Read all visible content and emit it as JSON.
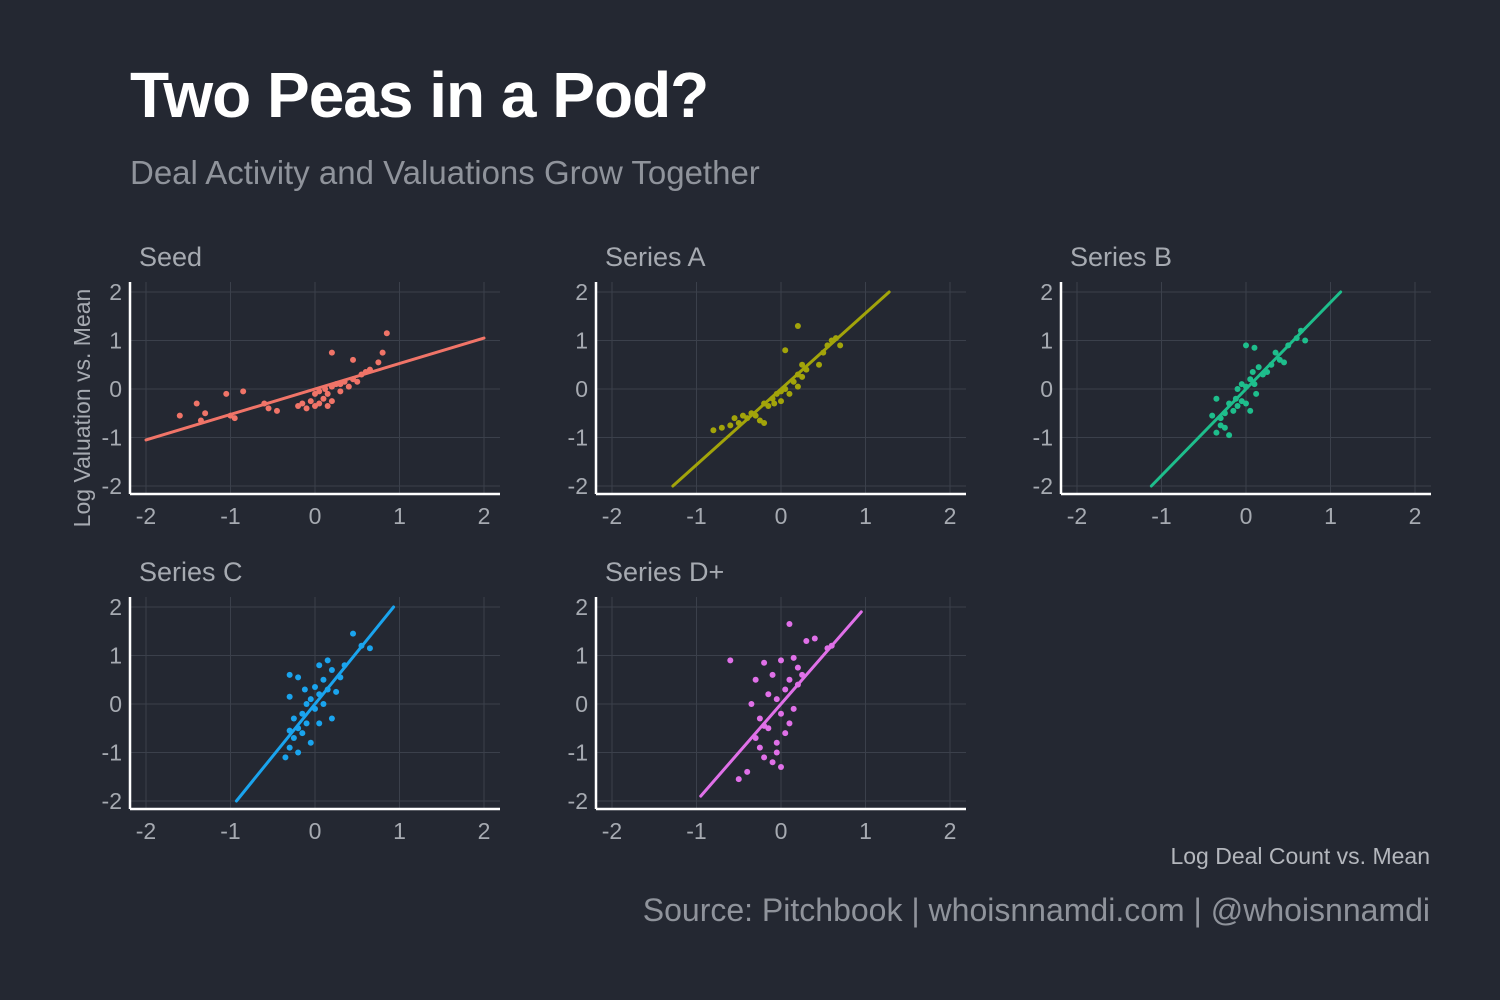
{
  "header": {
    "title": "Two Peas in a Pod?",
    "subtitle": "Deal Activity and Valuations Grow Together"
  },
  "axes": {
    "x_label": "Log Deal Count vs. Mean",
    "y_label": "Log Valuation vs. Mean"
  },
  "caption": "Source: Pitchbook | whoisnnamdi.com | @whoisnnamdi",
  "colors": {
    "background": "#242832",
    "grid": "#3b404b",
    "axis": "#ffffff",
    "tick_text": "#a6aab1",
    "panel_title": "#a6aab1"
  },
  "chart_data": [
    {
      "type": "scatter",
      "title": "Seed",
      "color": "#f07468",
      "xlim": [
        -2,
        2
      ],
      "ylim": [
        -2,
        2
      ],
      "xticks": [
        -2,
        -1,
        0,
        1,
        2
      ],
      "yticks": [
        -2,
        -1,
        0,
        1,
        2
      ],
      "fit": {
        "x": [
          -2,
          2
        ],
        "y": [
          -1.05,
          1.05
        ]
      },
      "points": [
        [
          -1.6,
          -0.55
        ],
        [
          -1.4,
          -0.3
        ],
        [
          -1.35,
          -0.65
        ],
        [
          -1.3,
          -0.5
        ],
        [
          -1.05,
          -0.1
        ],
        [
          -1.0,
          -0.55
        ],
        [
          -0.95,
          -0.6
        ],
        [
          -0.85,
          -0.05
        ],
        [
          -0.6,
          -0.3
        ],
        [
          -0.55,
          -0.4
        ],
        [
          -0.45,
          -0.45
        ],
        [
          -0.2,
          -0.35
        ],
        [
          -0.15,
          -0.3
        ],
        [
          -0.1,
          -0.4
        ],
        [
          -0.05,
          -0.25
        ],
        [
          0.0,
          -0.35
        ],
        [
          0.0,
          -0.1
        ],
        [
          0.05,
          -0.05
        ],
        [
          0.05,
          -0.3
        ],
        [
          0.1,
          -0.2
        ],
        [
          0.12,
          0.0
        ],
        [
          0.15,
          -0.35
        ],
        [
          0.15,
          -0.1
        ],
        [
          0.2,
          0.05
        ],
        [
          0.2,
          -0.25
        ],
        [
          0.25,
          0.1
        ],
        [
          0.3,
          -0.05
        ],
        [
          0.3,
          0.1
        ],
        [
          0.35,
          0.15
        ],
        [
          0.4,
          0.05
        ],
        [
          0.45,
          0.2
        ],
        [
          0.5,
          0.15
        ],
        [
          0.55,
          0.3
        ],
        [
          0.6,
          0.35
        ],
        [
          0.65,
          0.4
        ],
        [
          0.75,
          0.55
        ],
        [
          0.8,
          0.75
        ],
        [
          0.85,
          1.15
        ],
        [
          0.2,
          0.75
        ],
        [
          0.45,
          0.6
        ]
      ]
    },
    {
      "type": "scatter",
      "title": "Series A",
      "color": "#a2a40a",
      "xlim": [
        -2,
        2
      ],
      "ylim": [
        -2,
        2
      ],
      "xticks": [
        -2,
        -1,
        0,
        1,
        2
      ],
      "yticks": [
        -2,
        -1,
        0,
        1,
        2
      ],
      "fit": {
        "x": [
          -1.28,
          1.28
        ],
        "y": [
          -2,
          2
        ]
      },
      "points": [
        [
          -0.7,
          -0.8
        ],
        [
          -0.6,
          -0.75
        ],
        [
          -0.55,
          -0.6
        ],
        [
          -0.5,
          -0.7
        ],
        [
          -0.45,
          -0.55
        ],
        [
          -0.4,
          -0.6
        ],
        [
          -0.35,
          -0.5
        ],
        [
          -0.3,
          -0.55
        ],
        [
          -0.25,
          -0.65
        ],
        [
          -0.2,
          -0.7
        ],
        [
          -0.2,
          -0.3
        ],
        [
          -0.15,
          -0.35
        ],
        [
          -0.1,
          -0.2
        ],
        [
          -0.08,
          -0.3
        ],
        [
          -0.05,
          -0.1
        ],
        [
          0.0,
          -0.05
        ],
        [
          0.0,
          -0.25
        ],
        [
          0.05,
          0.0
        ],
        [
          0.1,
          -0.1
        ],
        [
          0.15,
          0.15
        ],
        [
          0.2,
          0.3
        ],
        [
          0.2,
          0.05
        ],
        [
          0.25,
          0.25
        ],
        [
          0.3,
          0.4
        ],
        [
          0.25,
          0.5
        ],
        [
          0.45,
          0.5
        ],
        [
          0.5,
          0.75
        ],
        [
          0.55,
          0.9
        ],
        [
          0.6,
          1.0
        ],
        [
          0.65,
          1.05
        ],
        [
          0.7,
          0.9
        ],
        [
          0.05,
          0.8
        ],
        [
          0.2,
          1.3
        ],
        [
          -0.8,
          -0.85
        ]
      ]
    },
    {
      "type": "scatter",
      "title": "Series B",
      "color": "#1ebe8c",
      "xlim": [
        -2,
        2
      ],
      "ylim": [
        -2,
        2
      ],
      "xticks": [
        -2,
        -1,
        0,
        1,
        2
      ],
      "yticks": [
        -2,
        -1,
        0,
        1,
        2
      ],
      "fit": {
        "x": [
          -1.12,
          1.12
        ],
        "y": [
          -2,
          2
        ]
      },
      "points": [
        [
          -0.4,
          -0.55
        ],
        [
          -0.35,
          -0.9
        ],
        [
          -0.3,
          -0.75
        ],
        [
          -0.3,
          -0.6
        ],
        [
          -0.25,
          -0.5
        ],
        [
          -0.25,
          -0.8
        ],
        [
          -0.2,
          -0.3
        ],
        [
          -0.15,
          -0.45
        ],
        [
          -0.12,
          -0.2
        ],
        [
          -0.1,
          0.0
        ],
        [
          -0.1,
          -0.35
        ],
        [
          -0.05,
          -0.25
        ],
        [
          -0.05,
          0.1
        ],
        [
          0.0,
          -0.3
        ],
        [
          0.0,
          0.05
        ],
        [
          0.05,
          0.2
        ],
        [
          0.05,
          -0.45
        ],
        [
          0.08,
          0.35
        ],
        [
          0.1,
          0.1
        ],
        [
          0.12,
          -0.1
        ],
        [
          0.15,
          0.45
        ],
        [
          0.2,
          0.3
        ],
        [
          0.25,
          0.35
        ],
        [
          0.3,
          0.5
        ],
        [
          0.35,
          0.75
        ],
        [
          0.4,
          0.6
        ],
        [
          0.45,
          0.55
        ],
        [
          0.5,
          0.9
        ],
        [
          0.6,
          1.05
        ],
        [
          0.65,
          1.2
        ],
        [
          0.7,
          1.0
        ],
        [
          0.0,
          0.9
        ],
        [
          0.1,
          0.85
        ],
        [
          -0.35,
          -0.2
        ],
        [
          -0.2,
          -0.95
        ]
      ]
    },
    {
      "type": "scatter",
      "title": "Series C",
      "color": "#1aa4ee",
      "xlim": [
        -2,
        2
      ],
      "ylim": [
        -2,
        2
      ],
      "xticks": [
        -2,
        -1,
        0,
        1,
        2
      ],
      "yticks": [
        -2,
        -1,
        0,
        1,
        2
      ],
      "fit": {
        "x": [
          -0.93,
          0.93
        ],
        "y": [
          -2,
          2
        ]
      },
      "points": [
        [
          -0.35,
          -1.1
        ],
        [
          -0.3,
          -0.9
        ],
        [
          -0.3,
          -0.55
        ],
        [
          -0.3,
          0.6
        ],
        [
          -0.25,
          -0.7
        ],
        [
          -0.25,
          -0.3
        ],
        [
          -0.2,
          -1.0
        ],
        [
          -0.2,
          -0.5
        ],
        [
          -0.15,
          -0.6
        ],
        [
          -0.15,
          -0.2
        ],
        [
          -0.12,
          0.3
        ],
        [
          -0.1,
          -0.4
        ],
        [
          -0.1,
          0.0
        ],
        [
          -0.05,
          -0.8
        ],
        [
          -0.05,
          0.1
        ],
        [
          0.0,
          -0.1
        ],
        [
          0.0,
          0.35
        ],
        [
          0.05,
          0.2
        ],
        [
          0.05,
          -0.4
        ],
        [
          0.1,
          0.5
        ],
        [
          0.1,
          0.0
        ],
        [
          0.15,
          0.3
        ],
        [
          0.15,
          0.9
        ],
        [
          0.2,
          0.7
        ],
        [
          0.2,
          -0.3
        ],
        [
          0.25,
          0.25
        ],
        [
          0.3,
          0.55
        ],
        [
          0.35,
          0.8
        ],
        [
          0.45,
          1.45
        ],
        [
          0.55,
          1.2
        ],
        [
          0.65,
          1.15
        ],
        [
          -0.3,
          0.15
        ],
        [
          -0.2,
          0.55
        ],
        [
          0.05,
          0.8
        ]
      ]
    },
    {
      "type": "scatter",
      "title": "Series D+",
      "color": "#e070e8",
      "xlim": [
        -2,
        2
      ],
      "ylim": [
        -2,
        2
      ],
      "xticks": [
        -2,
        -1,
        0,
        1,
        2
      ],
      "yticks": [
        -2,
        -1,
        0,
        1,
        2
      ],
      "fit": {
        "x": [
          -0.95,
          0.95
        ],
        "y": [
          -1.9,
          1.9
        ]
      },
      "points": [
        [
          -0.6,
          0.9
        ],
        [
          -0.5,
          -1.55
        ],
        [
          -0.4,
          -1.4
        ],
        [
          -0.3,
          0.5
        ],
        [
          -0.3,
          -0.7
        ],
        [
          -0.25,
          -0.3
        ],
        [
          -0.25,
          -0.9
        ],
        [
          -0.2,
          0.85
        ],
        [
          -0.2,
          -1.1
        ],
        [
          -0.15,
          0.2
        ],
        [
          -0.15,
          -0.5
        ],
        [
          -0.1,
          -1.2
        ],
        [
          -0.1,
          0.6
        ],
        [
          -0.05,
          -0.8
        ],
        [
          -0.05,
          0.1
        ],
        [
          0.0,
          -1.3
        ],
        [
          0.0,
          -0.2
        ],
        [
          0.0,
          0.9
        ],
        [
          0.05,
          -0.6
        ],
        [
          0.05,
          0.3
        ],
        [
          0.1,
          -0.4
        ],
        [
          0.1,
          0.5
        ],
        [
          0.15,
          0.95
        ],
        [
          0.15,
          -0.1
        ],
        [
          0.2,
          0.4
        ],
        [
          0.25,
          0.6
        ],
        [
          0.3,
          1.3
        ],
        [
          0.4,
          1.35
        ],
        [
          0.55,
          1.15
        ],
        [
          0.6,
          1.2
        ],
        [
          -0.35,
          0.0
        ],
        [
          -0.2,
          -0.45
        ],
        [
          0.1,
          1.65
        ],
        [
          -0.05,
          -1.0
        ],
        [
          0.2,
          0.75
        ]
      ]
    }
  ]
}
